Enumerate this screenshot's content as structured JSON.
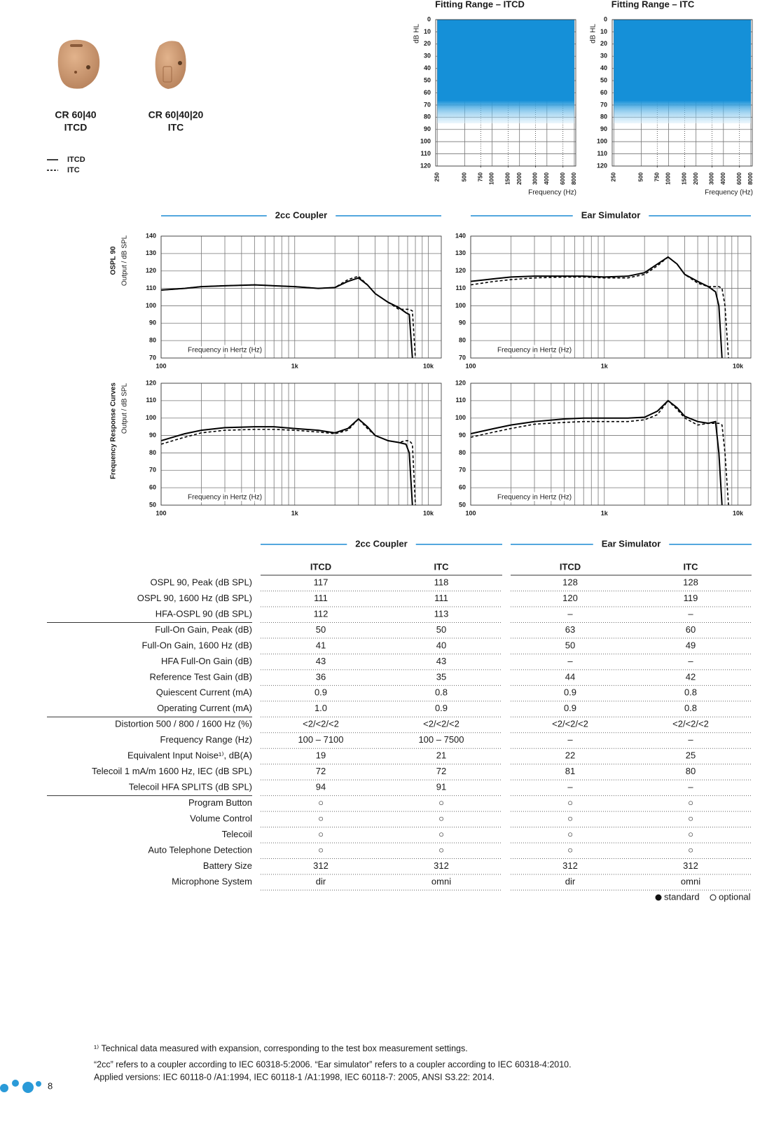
{
  "products": [
    {
      "model": "CR 60|40",
      "style": "ITCD"
    },
    {
      "model": "CR 60|40|20",
      "style": "ITC"
    }
  ],
  "sections": [
    "2cc Coupler",
    "Ear Simulator"
  ],
  "side_labels": [
    {
      "title": "OSPL 90",
      "axis": "Output / dB SPL"
    },
    {
      "title": "Frequency Response Curves",
      "axis": "Output / dB SPL"
    }
  ],
  "chart_data": [
    {
      "type": "area",
      "title": "Fitting Range – ITCD",
      "ylabel": "dB HL",
      "xlabel": "Frequency (Hz)",
      "x": [
        250,
        500,
        750,
        1000,
        1500,
        2000,
        3000,
        4000,
        6000,
        8000
      ],
      "values": [
        85,
        85,
        85,
        85,
        85,
        85,
        85,
        85,
        85,
        85
      ],
      "color": "#1590d8",
      "xlim": [
        240,
        8300
      ],
      "xlog": true,
      "ylim": [
        0,
        120
      ],
      "y_inverted": true,
      "yticks": [
        0,
        10,
        20,
        30,
        40,
        50,
        60,
        70,
        80,
        90,
        100,
        110,
        120
      ],
      "xticks": [
        250,
        500,
        750,
        1000,
        1500,
        2000,
        3000,
        4000,
        6000,
        8000
      ],
      "dotted_xticks": [
        750,
        1500,
        3000,
        6000
      ],
      "grid": true
    },
    {
      "type": "area",
      "title": "Fitting Range – ITC",
      "ylabel": "dB HL",
      "xlabel": "Frequency (Hz)",
      "x": [
        250,
        500,
        750,
        1000,
        1500,
        2000,
        3000,
        4000,
        6000,
        8000
      ],
      "values": [
        85,
        85,
        85,
        85,
        85,
        85,
        85,
        85,
        85,
        85
      ],
      "color": "#1590d8",
      "xlim": [
        240,
        8300
      ],
      "xlog": true,
      "ylim": [
        0,
        120
      ],
      "y_inverted": true,
      "yticks": [
        0,
        10,
        20,
        30,
        40,
        50,
        60,
        70,
        80,
        90,
        100,
        110,
        120
      ],
      "xticks": [
        250,
        500,
        750,
        1000,
        1500,
        2000,
        3000,
        4000,
        6000,
        8000
      ],
      "dotted_xticks": [
        750,
        1500,
        3000,
        6000
      ],
      "grid": true
    },
    {
      "type": "line",
      "annotation": "Frequency in Hertz (Hz)",
      "xlog": true,
      "xlim": [
        100,
        12500
      ],
      "ylim": [
        70,
        140
      ],
      "yticks": [
        70,
        80,
        90,
        100,
        110,
        120,
        130,
        140
      ],
      "xticks": [
        {
          "value": 100,
          "label": "100"
        },
        {
          "value": 1000,
          "label": "1k"
        },
        {
          "value": 10000,
          "label": "10k"
        }
      ],
      "xgrid": [
        200,
        300,
        400,
        500,
        600,
        700,
        800,
        900,
        2000,
        3000,
        4000,
        5000,
        6000,
        7000,
        8000,
        9000
      ],
      "grid": true,
      "x": [
        100,
        150,
        200,
        300,
        500,
        700,
        1000,
        1500,
        2000,
        2500,
        3000,
        3500,
        4000,
        5000,
        6000,
        6800,
        7200,
        7600,
        8000,
        8500
      ],
      "series": [
        {
          "name": "ITCD",
          "color": "#000000",
          "dashed": false,
          "values": [
            109,
            110,
            111,
            111.5,
            112,
            111.5,
            111,
            110,
            110.5,
            114,
            116,
            112,
            107,
            102,
            99,
            96,
            95,
            70,
            null,
            null
          ]
        },
        {
          "name": "ITC",
          "color": "#000000",
          "dashed": true,
          "values": [
            109,
            110,
            111,
            111.5,
            112,
            111.5,
            111,
            110,
            110.5,
            115,
            117,
            112,
            107,
            102,
            98,
            98,
            98,
            97,
            70,
            null
          ]
        }
      ]
    },
    {
      "type": "line",
      "annotation": "Frequency in Hertz (Hz)",
      "xlog": true,
      "xlim": [
        100,
        12500
      ],
      "ylim": [
        70,
        140
      ],
      "yticks": [
        70,
        80,
        90,
        100,
        110,
        120,
        130,
        140
      ],
      "xticks": [
        {
          "value": 100,
          "label": "100"
        },
        {
          "value": 1000,
          "label": "1k"
        },
        {
          "value": 10000,
          "label": "10k"
        }
      ],
      "xgrid": [
        200,
        300,
        400,
        500,
        600,
        700,
        800,
        900,
        2000,
        3000,
        4000,
        5000,
        6000,
        7000,
        8000,
        9000
      ],
      "grid": true,
      "x": [
        100,
        150,
        200,
        300,
        500,
        700,
        1000,
        1500,
        2000,
        2500,
        3000,
        3500,
        4000,
        5000,
        6000,
        6800,
        7200,
        7600,
        8000,
        8500
      ],
      "series": [
        {
          "name": "ITCD",
          "color": "#000000",
          "dashed": false,
          "values": [
            114,
            115.5,
            116.5,
            117,
            117,
            117,
            116.5,
            117,
            119,
            124,
            128,
            124,
            118,
            114,
            111,
            108,
            100,
            70,
            null,
            null
          ]
        },
        {
          "name": "ITC",
          "color": "#000000",
          "dashed": true,
          "values": [
            112,
            114,
            115,
            116,
            116.5,
            116.5,
            116,
            116,
            118,
            123,
            128,
            124,
            118,
            113,
            111,
            111,
            111,
            110,
            100,
            70
          ]
        }
      ]
    },
    {
      "type": "line",
      "annotation": "Frequency in Hertz (Hz)",
      "xlog": true,
      "xlim": [
        100,
        12500
      ],
      "ylim": [
        50,
        120
      ],
      "yticks": [
        50,
        60,
        70,
        80,
        90,
        100,
        110,
        120
      ],
      "xticks": [
        {
          "value": 100,
          "label": "100"
        },
        {
          "value": 1000,
          "label": "1k"
        },
        {
          "value": 10000,
          "label": "10k"
        }
      ],
      "xgrid": [
        200,
        300,
        400,
        500,
        600,
        700,
        800,
        900,
        2000,
        3000,
        4000,
        5000,
        6000,
        7000,
        8000,
        9000
      ],
      "grid": true,
      "x": [
        100,
        150,
        200,
        300,
        500,
        700,
        1000,
        1500,
        2000,
        2500,
        3000,
        3500,
        4000,
        5000,
        6000,
        6800,
        7200,
        7600,
        8000,
        8500
      ],
      "series": [
        {
          "name": "ITCD",
          "color": "#000000",
          "dashed": false,
          "values": [
            87,
            91,
            93,
            94.5,
            95,
            95,
            94,
            93,
            91.5,
            94,
            99.5,
            95,
            90,
            87,
            86,
            85,
            80,
            50,
            null,
            null
          ]
        },
        {
          "name": "ITC",
          "color": "#000000",
          "dashed": true,
          "values": [
            85,
            89,
            91.5,
            93,
            93.5,
            93.5,
            93,
            92,
            91,
            93,
            99.5,
            94,
            90,
            87,
            86,
            87,
            87,
            85,
            50,
            null
          ]
        }
      ]
    },
    {
      "type": "line",
      "annotation": "Frequency in Hertz (Hz)",
      "xlog": true,
      "xlim": [
        100,
        12500
      ],
      "ylim": [
        50,
        120
      ],
      "yticks": [
        50,
        60,
        70,
        80,
        90,
        100,
        110,
        120
      ],
      "xticks": [
        {
          "value": 100,
          "label": "100"
        },
        {
          "value": 1000,
          "label": "1k"
        },
        {
          "value": 10000,
          "label": "10k"
        }
      ],
      "xgrid": [
        200,
        300,
        400,
        500,
        600,
        700,
        800,
        900,
        2000,
        3000,
        4000,
        5000,
        6000,
        7000,
        8000,
        9000
      ],
      "grid": true,
      "x": [
        100,
        150,
        200,
        300,
        500,
        700,
        1000,
        1500,
        2000,
        2500,
        3000,
        3500,
        4000,
        5000,
        6000,
        6800,
        7200,
        7600,
        8000,
        8500
      ],
      "series": [
        {
          "name": "ITCD",
          "color": "#000000",
          "dashed": false,
          "values": [
            91,
            94,
            96,
            98,
            99.5,
            100,
            100,
            100,
            100.5,
            104,
            110,
            106,
            101,
            98,
            97,
            98,
            80,
            50,
            null,
            null
          ]
        },
        {
          "name": "ITC",
          "color": "#000000",
          "dashed": true,
          "values": [
            89,
            92,
            94,
            96.5,
            97.5,
            98,
            98,
            98,
            99,
            102,
            110,
            105,
            100,
            96,
            97,
            97,
            97,
            96,
            80,
            50
          ]
        }
      ]
    }
  ],
  "table": {
    "groups": [
      "2cc Coupler",
      "Ear Simulator"
    ],
    "columns": [
      "ITCD",
      "ITC",
      "ITCD",
      "ITC"
    ],
    "sections": [
      [
        [
          "OSPL 90, Peak (dB SPL)",
          "117",
          "118",
          "128",
          "128"
        ],
        [
          "OSPL 90, 1600 Hz (dB SPL)",
          "111",
          "111",
          "120",
          "119"
        ],
        [
          "HFA-OSPL 90 (dB SPL)",
          "112",
          "113",
          "–",
          "–"
        ]
      ],
      [
        [
          "Full-On Gain, Peak (dB)",
          "50",
          "50",
          "63",
          "60"
        ],
        [
          "Full-On Gain, 1600 Hz (dB)",
          "41",
          "40",
          "50",
          "49"
        ],
        [
          "HFA Full-On Gain (dB)",
          "43",
          "43",
          "–",
          "–"
        ],
        [
          "Reference Test Gain (dB)",
          "36",
          "35",
          "44",
          "42"
        ],
        [
          "Quiescent Current (mA)",
          "0.9",
          "0.8",
          "0.9",
          "0.8"
        ],
        [
          "Operating Current (mA)",
          "1.0",
          "0.9",
          "0.9",
          "0.8"
        ]
      ],
      [
        [
          "Distortion 500 / 800 / 1600 Hz (%)",
          "<2/<2/<2",
          "<2/<2/<2",
          "<2/<2/<2",
          "<2/<2/<2"
        ],
        [
          "Frequency Range (Hz)",
          "100 – 7100",
          "100 – 7500",
          "–",
          "–"
        ],
        [
          "Equivalent Input Noise¹⁾, dB(A)",
          "19",
          "21",
          "22",
          "25"
        ],
        [
          "Telecoil 1 mA/m 1600 Hz, IEC (dB SPL)",
          "72",
          "72",
          "81",
          "80"
        ],
        [
          "Telecoil HFA SPLITS (dB SPL)",
          "94",
          "91",
          "–",
          "–"
        ]
      ],
      [
        [
          "Program Button",
          "○",
          "○",
          "○",
          "○"
        ],
        [
          "Volume Control",
          "○",
          "○",
          "○",
          "○"
        ],
        [
          "Telecoil",
          "○",
          "○",
          "○",
          "○"
        ],
        [
          "Auto Telephone Detection",
          "○",
          "○",
          "○",
          "○"
        ],
        [
          "Battery Size",
          "312",
          "312",
          "312",
          "312"
        ],
        [
          "Microphone System",
          "dir",
          "omni",
          "dir",
          "omni"
        ]
      ]
    ],
    "legend": [
      "standard",
      "optional"
    ]
  },
  "footnotes": [
    "¹⁾ Technical data measured with expansion, corresponding to the test box measurement settings.",
    "“2cc” refers to a coupler according to IEC 60318-5:2006. “Ear simulator” refers to a coupler according to IEC 60318-4:2010.",
    "Applied versions: IEC 60118-0 /A1:1994, IEC 60118-1 /A1:1998, IEC 60118-7: 2005, ANSI S3.22: 2014."
  ],
  "page_number": "8"
}
